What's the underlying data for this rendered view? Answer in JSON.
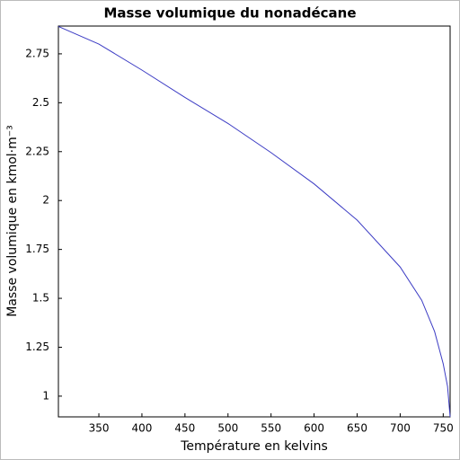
{
  "chart_data": {
    "type": "line",
    "title": "Masse volumique du nonadécane",
    "x_label": "Température en kelvins",
    "y_label": "Masse volumique en kmol·m⁻³",
    "x": [
      303,
      350,
      400,
      450,
      500,
      550,
      600,
      650,
      700,
      725,
      740,
      750,
      755,
      758
    ],
    "series": [
      {
        "name": "nonadécane",
        "color": "#3c3cc4",
        "values": [
          2.89,
          2.8,
          2.667,
          2.527,
          2.394,
          2.245,
          2.085,
          1.9,
          1.66,
          1.49,
          1.33,
          1.165,
          1.05,
          0.894
        ]
      }
    ],
    "xlim": [
      303,
      758
    ],
    "ylim": [
      0.894,
      2.892
    ],
    "xticks": [
      350,
      400,
      450,
      500,
      550,
      600,
      650,
      700,
      750
    ],
    "yticks": [
      1,
      1.25,
      1.5,
      1.75,
      2,
      2.25,
      2.5,
      2.75
    ]
  }
}
